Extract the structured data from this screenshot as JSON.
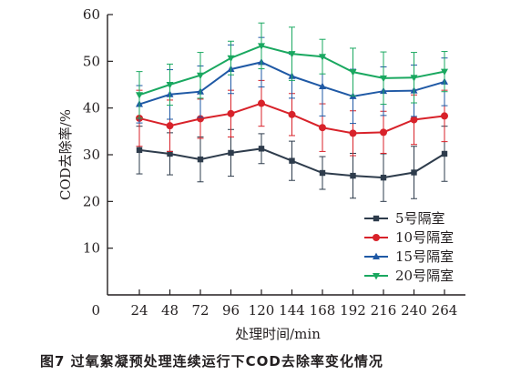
{
  "chart_data": {
    "type": "line",
    "title": "",
    "xlabel": "处理时间/min",
    "ylabel": "COD去除率/%",
    "x": [
      24,
      48,
      72,
      96,
      120,
      144,
      168,
      192,
      216,
      240,
      264
    ],
    "x_ticks": [
      "24",
      "48",
      "72",
      "96",
      "120",
      "144",
      "168",
      "192",
      "216",
      "240",
      "264"
    ],
    "y_ticks": [
      "10",
      "20",
      "30",
      "40",
      "50",
      "60"
    ],
    "origin_label": "0",
    "ylim": [
      0,
      60
    ],
    "grid": false,
    "legend_position": "bottom-right",
    "series": [
      {
        "name": "5号隔室",
        "color": "#2e3c4c",
        "marker": "square",
        "values": [
          31.0,
          30.2,
          29.0,
          30.4,
          31.3,
          28.7,
          26.1,
          25.5,
          25.1,
          26.2,
          30.2
        ],
        "errors": [
          5.1,
          4.5,
          4.8,
          5.0,
          3.2,
          4.2,
          3.5,
          4.8,
          5.1,
          5.6,
          5.9
        ]
      },
      {
        "name": "10号隔室",
        "color": "#d8222a",
        "marker": "circle",
        "values": [
          37.8,
          36.2,
          37.7,
          38.8,
          41.0,
          38.6,
          35.8,
          34.6,
          34.8,
          37.5,
          38.3
        ],
        "errors": [
          6.0,
          5.5,
          4.2,
          5.0,
          4.9,
          4.5,
          5.1,
          4.8,
          4.5,
          5.3,
          5.5
        ]
      },
      {
        "name": "15号隔室",
        "color": "#1f59a5",
        "marker": "triangle-up",
        "values": [
          40.8,
          42.9,
          43.5,
          48.3,
          49.8,
          46.8,
          44.6,
          42.5,
          43.6,
          43.7,
          45.6
        ],
        "errors": [
          4.0,
          5.3,
          5.5,
          5.2,
          5.3,
          4.7,
          6.3,
          5.8,
          5.2,
          5.5,
          5.1
        ]
      },
      {
        "name": "20号隔室",
        "color": "#1aa860",
        "marker": "triangle-down",
        "values": [
          42.8,
          45.0,
          47.0,
          50.7,
          53.3,
          51.6,
          51.0,
          47.7,
          46.4,
          46.5,
          47.8
        ],
        "errors": [
          5.0,
          4.4,
          4.9,
          3.6,
          4.9,
          5.7,
          3.7,
          5.1,
          5.6,
          5.4,
          4.3
        ]
      }
    ]
  },
  "caption": "图7  过氧絮凝预处理连续运行下COD去除率变化情况"
}
